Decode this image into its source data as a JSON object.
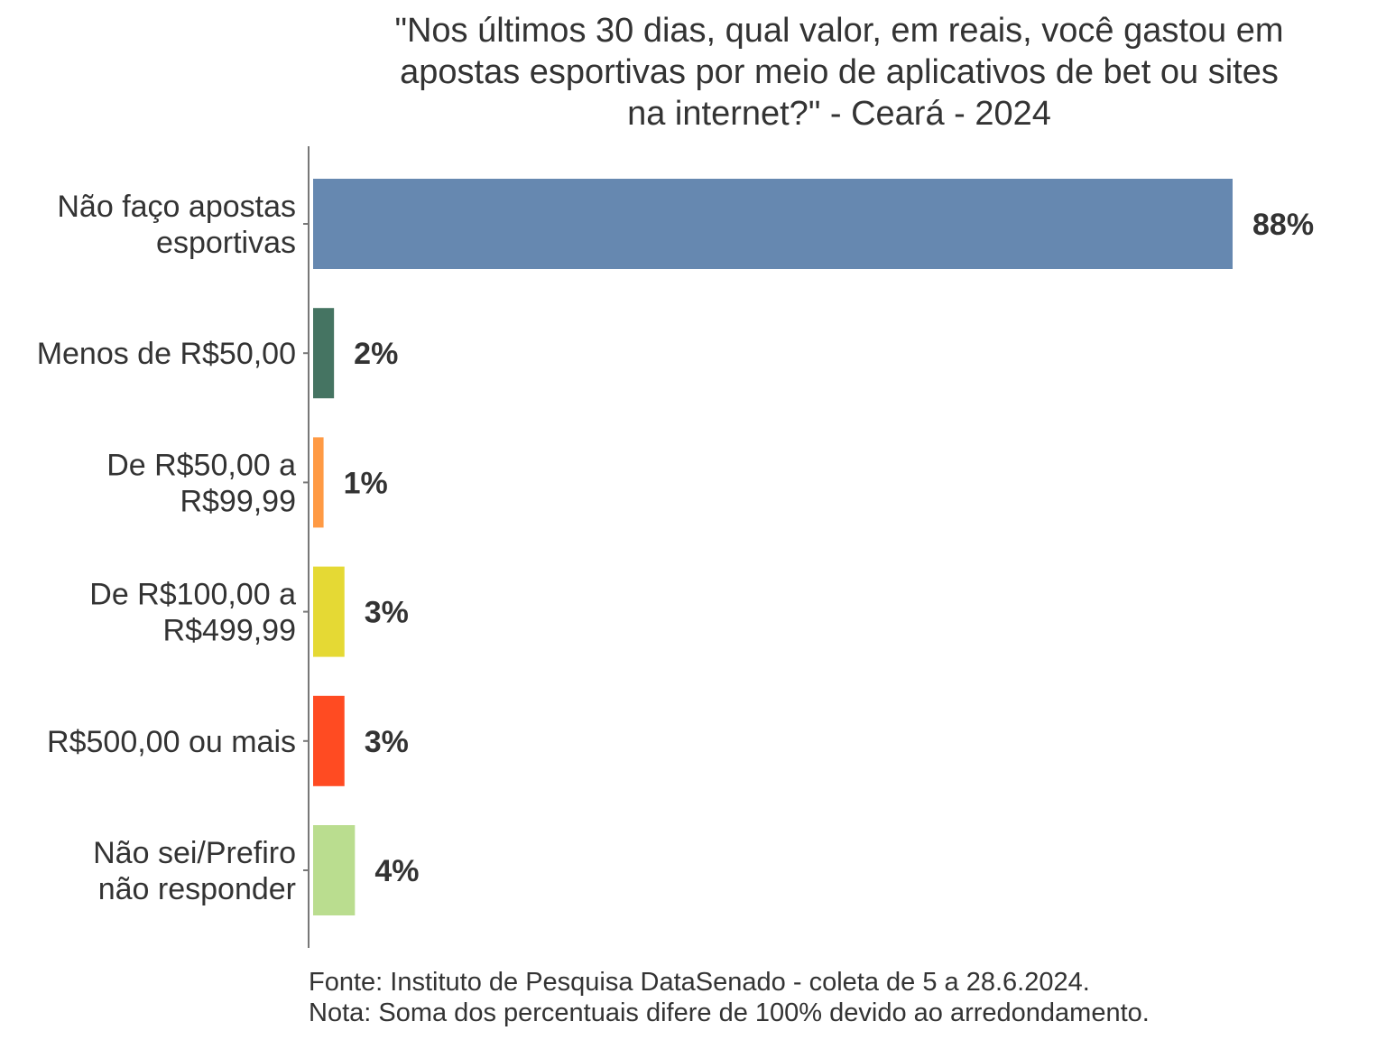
{
  "chart_data": {
    "type": "bar",
    "orientation": "horizontal",
    "title_lines": [
      "\"Nos últimos 30 dias, qual valor, em reais, você gastou em",
      "apostas esportivas por meio de aplicativos de bet ou sites",
      "na internet?\" - Ceará - 2024"
    ],
    "categories": [
      [
        "Não faço apostas",
        "esportivas"
      ],
      [
        "Menos de R$50,00"
      ],
      [
        "De R$50,00 a",
        "R$99,99"
      ],
      [
        "De R$100,00 a",
        "R$499,99"
      ],
      [
        "R$500,00 ou mais"
      ],
      [
        "Não sei/Prefiro",
        "não responder"
      ]
    ],
    "values": [
      88,
      2,
      1,
      3,
      3,
      4
    ],
    "value_labels": [
      "88%",
      "2%",
      "1%",
      "3%",
      "3%",
      "4%"
    ],
    "colors": [
      "#6688b0",
      "#457462",
      "#ff9a44",
      "#e5d934",
      "#ff4b22",
      "#badd8f"
    ],
    "xlim": [
      0,
      100
    ],
    "xlabel": "",
    "ylabel": "",
    "grid": false,
    "legend": "none",
    "footnotes": [
      "Fonte: Instituto de Pesquisa DataSenado - coleta de 5 a 28.6.2024.",
      "Nota: Soma dos percentuais difere de 100% devido ao arredondamento."
    ]
  }
}
